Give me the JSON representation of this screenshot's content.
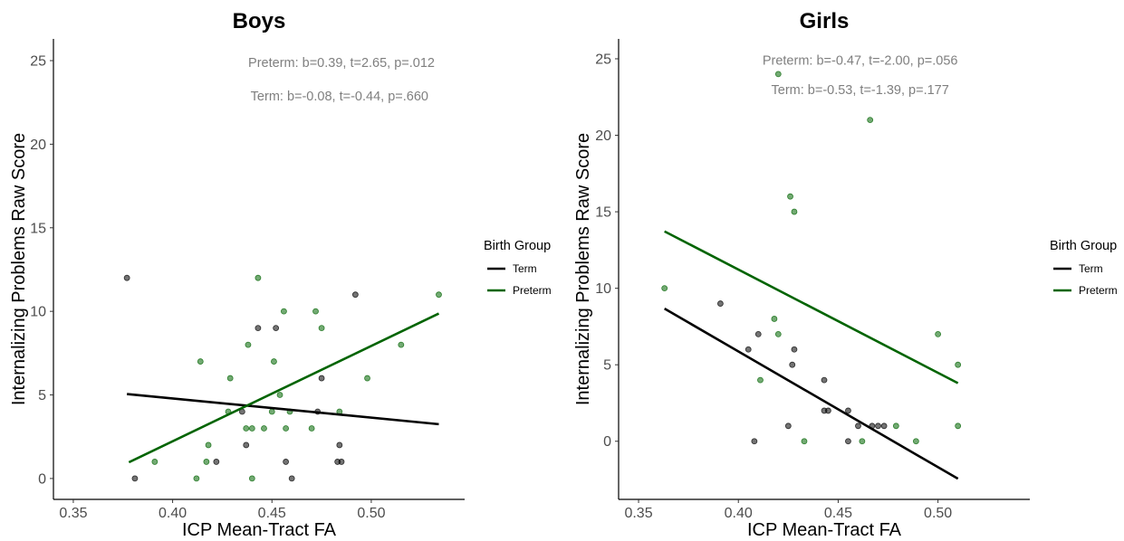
{
  "chart_data": [
    {
      "type": "scatter",
      "title": "Boys",
      "xlabel": "ICP Mean-Tract FA",
      "ylabel": "Internalizing Problems Raw Score",
      "xlim": [
        0.34,
        0.547
      ],
      "ylim": [
        -1.25,
        26.3
      ],
      "xticks": [
        0.35,
        0.4,
        0.45,
        0.5
      ],
      "xtick_labels": [
        "0.35",
        "0.40",
        "0.45",
        "0.50"
      ],
      "yticks": [
        0,
        5,
        10,
        15,
        20,
        25
      ],
      "ytick_labels": [
        "0",
        "5",
        "10",
        "15",
        "20",
        "25"
      ],
      "grid": false,
      "legend": {
        "title": "Birth Group",
        "placement": "right",
        "entries": [
          "Term",
          "Preterm"
        ]
      },
      "annotations": [
        {
          "text": "Preterm: b=0.39, t=2.65, p=.012",
          "x": 0.485,
          "y": 24.9
        },
        {
          "text": "Term: b=-0.08,  t=-0.44, p=.660",
          "x": 0.484,
          "y": 22.9
        }
      ],
      "series": [
        {
          "name": "Term",
          "color": "#000000",
          "points": [
            [
              0.377,
              12
            ],
            [
              0.381,
              0
            ],
            [
              0.422,
              1
            ],
            [
              0.435,
              4
            ],
            [
              0.437,
              2
            ],
            [
              0.443,
              9
            ],
            [
              0.452,
              9
            ],
            [
              0.457,
              1
            ],
            [
              0.46,
              0
            ],
            [
              0.473,
              4
            ],
            [
              0.475,
              6
            ],
            [
              0.483,
              1
            ],
            [
              0.484,
              2
            ],
            [
              0.485,
              1
            ],
            [
              0.492,
              11
            ]
          ],
          "fit": [
            [
              0.377,
              5.05
            ],
            [
              0.534,
              3.25
            ]
          ]
        },
        {
          "name": "Preterm",
          "color": "#006400",
          "points": [
            [
              0.391,
              1
            ],
            [
              0.412,
              0
            ],
            [
              0.414,
              7
            ],
            [
              0.417,
              1
            ],
            [
              0.418,
              2
            ],
            [
              0.428,
              4
            ],
            [
              0.429,
              6
            ],
            [
              0.437,
              3
            ],
            [
              0.438,
              8
            ],
            [
              0.44,
              3
            ],
            [
              0.44,
              0
            ],
            [
              0.443,
              12
            ],
            [
              0.446,
              3
            ],
            [
              0.45,
              4
            ],
            [
              0.451,
              7
            ],
            [
              0.454,
              5
            ],
            [
              0.456,
              10
            ],
            [
              0.457,
              3
            ],
            [
              0.459,
              4
            ],
            [
              0.47,
              3
            ],
            [
              0.472,
              10
            ],
            [
              0.475,
              9
            ],
            [
              0.484,
              4
            ],
            [
              0.498,
              6
            ],
            [
              0.515,
              8
            ],
            [
              0.534,
              11
            ]
          ],
          "fit": [
            [
              0.378,
              0.97
            ],
            [
              0.534,
              9.87
            ]
          ]
        }
      ]
    },
    {
      "type": "scatter",
      "title": "Girls",
      "xlabel": "ICP Mean-Tract FA",
      "ylabel": "Internalizing Problems Raw Score",
      "xlim": [
        0.34,
        0.546
      ],
      "ylim": [
        -3.8,
        26.3
      ],
      "xticks": [
        0.35,
        0.4,
        0.45,
        0.5
      ],
      "xtick_labels": [
        "0.35",
        "0.40",
        "0.45",
        "0.50"
      ],
      "yticks": [
        0,
        5,
        10,
        15,
        20,
        25
      ],
      "ytick_labels": [
        "0",
        "5",
        "10",
        "15",
        "20",
        "25"
      ],
      "grid": false,
      "legend": {
        "title": "Birth Group",
        "placement": "right",
        "entries": [
          "Term",
          "Preterm"
        ]
      },
      "annotations": [
        {
          "text": "Preterm: b=-0.47, t=-2.00, p=.056",
          "x": 0.461,
          "y": 24.9
        },
        {
          "text": "Term: b=-0.53,  t=-1.39, p=.177",
          "x": 0.461,
          "y": 23.0
        }
      ],
      "series": [
        {
          "name": "Term",
          "color": "#000000",
          "points": [
            [
              0.391,
              9
            ],
            [
              0.405,
              6
            ],
            [
              0.408,
              0
            ],
            [
              0.41,
              7
            ],
            [
              0.425,
              1
            ],
            [
              0.427,
              5
            ],
            [
              0.428,
              6
            ],
            [
              0.443,
              4
            ],
            [
              0.443,
              2
            ],
            [
              0.445,
              2
            ],
            [
              0.455,
              2
            ],
            [
              0.455,
              0
            ],
            [
              0.46,
              1
            ],
            [
              0.467,
              1
            ],
            [
              0.47,
              1
            ],
            [
              0.473,
              1
            ]
          ],
          "fit": [
            [
              0.363,
              8.67
            ],
            [
              0.51,
              -2.45
            ]
          ]
        },
        {
          "name": "Preterm",
          "color": "#006400",
          "points": [
            [
              0.363,
              10
            ],
            [
              0.411,
              4
            ],
            [
              0.418,
              8
            ],
            [
              0.42,
              7
            ],
            [
              0.42,
              24
            ],
            [
              0.426,
              16
            ],
            [
              0.428,
              15
            ],
            [
              0.433,
              0
            ],
            [
              0.462,
              0
            ],
            [
              0.466,
              21
            ],
            [
              0.479,
              1
            ],
            [
              0.489,
              0
            ],
            [
              0.5,
              7
            ],
            [
              0.51,
              1
            ],
            [
              0.51,
              5
            ]
          ],
          "fit": [
            [
              0.363,
              13.72
            ],
            [
              0.51,
              3.8
            ]
          ]
        }
      ]
    }
  ]
}
